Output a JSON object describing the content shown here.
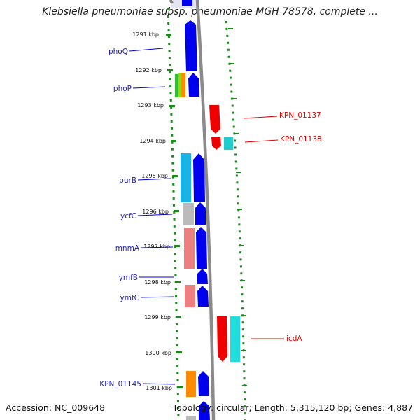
{
  "title": "Klebsiella pneumoniae subsp. pneumoniae MGH 78578, complete ...",
  "accession": "Accession: NC_009648",
  "summary": "Topology: circular; Length: 5,315,120 bp; Genes: 4,887",
  "colors": {
    "backbone": "#808080",
    "ring_dots": "#1a8a1a",
    "forward_gene": "#0000ee",
    "label_blue": "#1f1fb4",
    "label_red": "#e00000"
  },
  "kbp_ticks": [
    "1291 kbp",
    "1292 kbp",
    "1293 kbp",
    "1294 kbp",
    "1295 kbp",
    "1296 kbp",
    "1297 kbp",
    "1298 kbp",
    "1299 kbp",
    "1300 kbp",
    "1301 kbp"
  ],
  "gene_labels_left": [
    "phoQ",
    "phoP",
    "purB",
    "ycfC",
    "mnmA",
    "ymfB",
    "ymfC",
    "KPN_01145"
  ],
  "gene_labels_right": [
    "KPN_01137",
    "KPN_01138",
    "icdA"
  ]
}
